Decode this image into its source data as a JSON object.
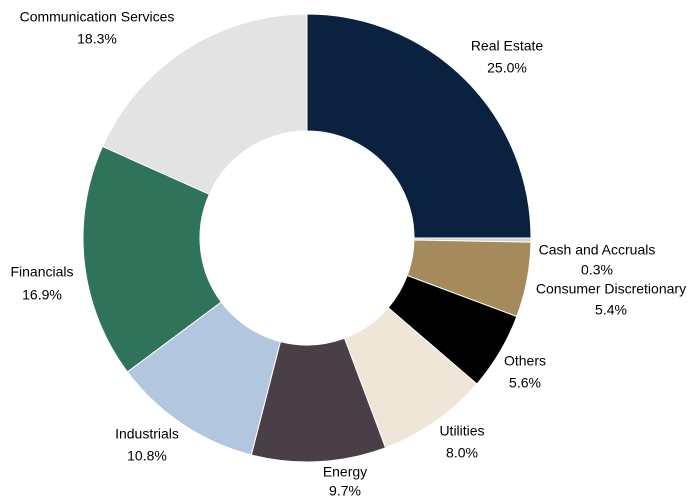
{
  "chart_data": {
    "type": "donut",
    "categories": [
      "Real Estate",
      "Cash and Accruals",
      "Consumer Discretionary",
      "Others",
      "Utilities",
      "Energy",
      "Industrials",
      "Financials",
      "Communication Services"
    ],
    "values": [
      25.0,
      0.3,
      5.4,
      5.6,
      8.0,
      9.7,
      10.8,
      16.9,
      18.3
    ],
    "value_labels": [
      "25.0%",
      "0.3%",
      "5.4%",
      "5.6%",
      "8.0%",
      "9.7%",
      "10.8%",
      "16.9%",
      "18.3%"
    ],
    "colors": [
      "#0a2240",
      "#d0cfcb",
      "#a58a5c",
      "#000000",
      "#f0e6d8",
      "#4a3f47",
      "#b3c6e0",
      "#2e735a",
      "#e3e3e3"
    ]
  }
}
